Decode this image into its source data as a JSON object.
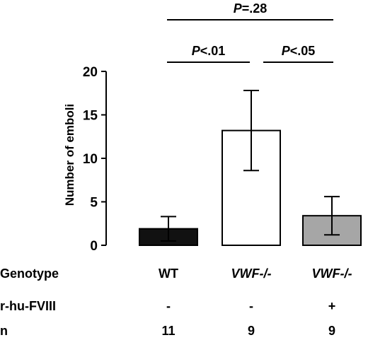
{
  "chart_data": {
    "type": "bar",
    "ylabel": "Number of emboli",
    "ylim": [
      0,
      20
    ],
    "yticks": [
      0,
      5,
      10,
      15,
      20
    ],
    "categories": [
      "WT",
      "VWF-/-",
      "VWF-/-"
    ],
    "values": [
      1.9,
      13.2,
      3.4
    ],
    "error": [
      1.4,
      4.6,
      2.2
    ],
    "bar_colors": [
      "#111111",
      "#ffffff",
      "#a6a6a6"
    ],
    "significance": [
      {
        "label_p": "P",
        "label_rest": "=.28",
        "from": 0,
        "to": 2
      },
      {
        "label_p": "P",
        "label_rest": "<.01",
        "from": 0,
        "to": 1
      },
      {
        "label_p": "P",
        "label_rest": "<.05",
        "from": 1,
        "to": 2
      }
    ],
    "table": {
      "rows": [
        {
          "label": "Genotype",
          "values": [
            "WT",
            "VWF-/-",
            "VWF-/-"
          ],
          "italic": [
            false,
            true,
            true
          ]
        },
        {
          "label": "r-hu-FVIII",
          "values": [
            "-",
            "-",
            "+"
          ],
          "italic": [
            false,
            false,
            false
          ]
        },
        {
          "label": "n",
          "values": [
            "11",
            "9",
            "9"
          ],
          "italic": [
            false,
            false,
            false
          ]
        }
      ]
    }
  }
}
